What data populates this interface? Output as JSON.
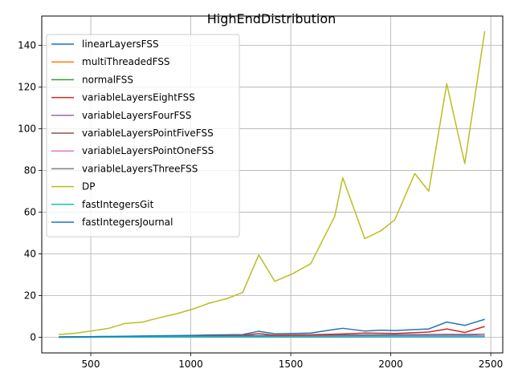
{
  "chart_data": {
    "type": "line",
    "title": "HighEndDistribution",
    "xlabel": "",
    "ylabel": "",
    "xlim": [
      255,
      2560
    ],
    "ylim": [
      -7.5,
      154
    ],
    "xticks": [
      500,
      1000,
      1500,
      2000,
      2500
    ],
    "yticks": [
      0,
      20,
      40,
      60,
      80,
      100,
      120,
      140
    ],
    "grid": true,
    "legend_position": "top-left",
    "x": [
      340,
      430,
      500,
      590,
      670,
      760,
      840,
      930,
      1010,
      1090,
      1180,
      1260,
      1340,
      1420,
      1510,
      1600,
      1720,
      1760,
      1870,
      1950,
      2020,
      2120,
      2190,
      2280,
      2370,
      2470
    ],
    "series": [
      {
        "name": "linearLayersFSS",
        "color": "#1f77b4",
        "values": [
          0.2,
          0.25,
          0.3,
          0.35,
          0.4,
          0.45,
          0.5,
          0.55,
          0.6,
          0.65,
          0.7,
          0.75,
          0.8,
          0.85,
          0.9,
          0.95,
          1.0,
          1.05,
          1.1,
          1.15,
          1.2,
          1.25,
          1.3,
          1.4,
          1.35,
          1.5
        ]
      },
      {
        "name": "multiThreadedFSS",
        "color": "#ff7f0e",
        "values": [
          0.1,
          0.12,
          0.14,
          0.16,
          0.18,
          0.2,
          0.22,
          0.24,
          0.26,
          0.28,
          0.3,
          0.32,
          0.34,
          0.36,
          0.38,
          0.4,
          0.42,
          0.44,
          0.46,
          0.48,
          0.5,
          0.52,
          0.54,
          0.56,
          0.58,
          0.6
        ]
      },
      {
        "name": "normalFSS",
        "color": "#2ca02c",
        "values": [
          0.05,
          0.06,
          0.07,
          0.08,
          0.09,
          0.1,
          0.11,
          0.12,
          0.13,
          0.14,
          0.15,
          0.16,
          0.17,
          0.18,
          0.19,
          0.2,
          0.21,
          0.22,
          0.23,
          0.24,
          0.25,
          0.26,
          0.27,
          0.28,
          0.29,
          0.3
        ]
      },
      {
        "name": "variableLayersEightFSS",
        "color": "#d62728",
        "values": [
          0.1,
          0.15,
          0.2,
          0.25,
          0.3,
          0.35,
          0.4,
          0.5,
          0.6,
          0.7,
          0.8,
          0.9,
          1.8,
          1.0,
          1.1,
          1.2,
          1.5,
          1.6,
          2.0,
          1.9,
          1.8,
          2.2,
          2.5,
          4.0,
          2.3,
          5.2
        ]
      },
      {
        "name": "variableLayersFourFSS",
        "color": "#9467bd",
        "values": [
          0.1,
          0.12,
          0.14,
          0.16,
          0.18,
          0.2,
          0.22,
          0.24,
          0.26,
          0.28,
          0.3,
          0.32,
          0.34,
          0.36,
          0.38,
          0.4,
          0.42,
          0.44,
          0.46,
          0.48,
          0.5,
          0.52,
          0.54,
          0.56,
          0.58,
          0.6
        ]
      },
      {
        "name": "variableLayersPointFiveFSS",
        "color": "#8c564b",
        "values": [
          0.1,
          0.12,
          0.14,
          0.16,
          0.18,
          0.2,
          0.22,
          0.24,
          0.26,
          0.28,
          0.3,
          0.32,
          0.34,
          0.36,
          0.38,
          0.4,
          0.42,
          0.44,
          0.46,
          0.48,
          0.5,
          0.52,
          0.54,
          0.56,
          0.58,
          0.6
        ]
      },
      {
        "name": "variableLayersPointOneFSS",
        "color": "#e377c2",
        "values": [
          0.1,
          0.12,
          0.14,
          0.16,
          0.18,
          0.2,
          0.22,
          0.24,
          0.26,
          0.28,
          0.3,
          0.32,
          0.34,
          0.36,
          0.38,
          0.4,
          0.42,
          0.44,
          0.46,
          0.48,
          0.5,
          0.52,
          0.54,
          0.56,
          0.58,
          0.6
        ]
      },
      {
        "name": "variableLayersThreeFSS",
        "color": "#7f7f7f",
        "values": [
          0.2,
          0.22,
          0.24,
          0.26,
          0.28,
          0.3,
          0.32,
          0.34,
          0.36,
          0.38,
          0.4,
          0.42,
          0.5,
          0.5,
          0.55,
          0.6,
          0.7,
          0.75,
          0.8,
          0.85,
          0.9,
          0.95,
          1.0,
          1.2,
          1.0,
          1.5
        ]
      },
      {
        "name": "DP",
        "color": "#bcbd22",
        "values": [
          1.3,
          2.0,
          3.0,
          4.3,
          6.6,
          7.3,
          9.3,
          11.3,
          13.5,
          16.3,
          18.5,
          21.5,
          39.5,
          26.8,
          30.5,
          35.3,
          58.0,
          76.5,
          47.3,
          51.0,
          56.3,
          78.5,
          70.0,
          121.5,
          83.3,
          146.8
        ]
      },
      {
        "name": "fastIntegersGit",
        "color": "#17becf",
        "values": [
          0.02,
          0.02,
          0.02,
          0.03,
          0.03,
          0.03,
          0.03,
          0.04,
          0.04,
          0.04,
          0.04,
          0.05,
          0.05,
          0.05,
          0.05,
          0.06,
          0.06,
          0.06,
          0.06,
          0.07,
          0.07,
          0.07,
          0.07,
          0.08,
          0.08,
          0.08
        ]
      },
      {
        "name": "fastIntegersJournal",
        "color": "#1f77b4",
        "values": [
          0.1,
          0.2,
          0.3,
          0.4,
          0.5,
          0.6,
          0.7,
          0.8,
          0.9,
          1.1,
          1.2,
          1.3,
          2.9,
          1.7,
          1.8,
          2.0,
          3.8,
          4.3,
          3.0,
          3.4,
          3.2,
          3.7,
          4.0,
          7.3,
          5.7,
          8.6
        ]
      }
    ]
  }
}
